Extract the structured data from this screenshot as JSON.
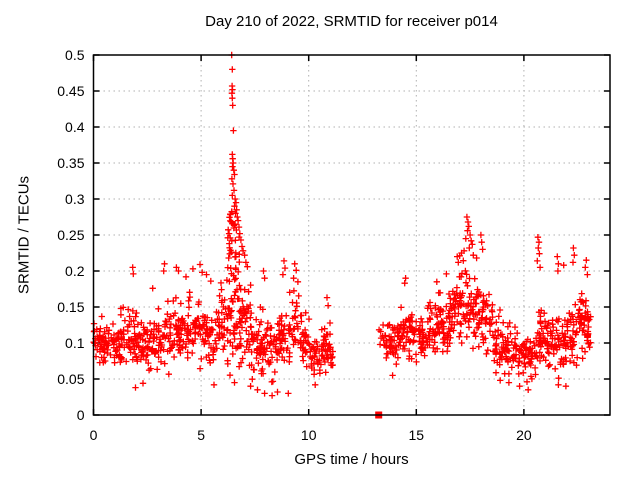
{
  "figure": {
    "title": "Day 210 of 2022, SRMTID for receiver p014"
  },
  "chart_data": {
    "type": "scatter",
    "title": "Day 210 of 2022, SRMTID for receiver p014",
    "xlabel": "GPS time / hours",
    "ylabel": "SRMTID / TECUs",
    "xlim": [
      0,
      24
    ],
    "ylim": [
      0,
      0.5
    ],
    "xticks": {
      "values": [
        0,
        5,
        10,
        15,
        20
      ],
      "labels": [
        "0",
        "5",
        "10",
        "15",
        "20"
      ]
    },
    "yticks": {
      "values": [
        0,
        0.05,
        0.1,
        0.15,
        0.2,
        0.25,
        0.3,
        0.35,
        0.4,
        0.45,
        0.5
      ],
      "labels": [
        "0",
        "0.05",
        "0.1",
        "0.15",
        "0.2",
        "0.25",
        "0.3",
        "0.35",
        "0.4",
        "0.45",
        "0.5"
      ]
    },
    "grid": true,
    "legend_position": "none",
    "marker": "plus",
    "marker_color": "#ff0000",
    "grid_color": "#b0b0b0",
    "border_color": "#000000",
    "data_gap_hours": [
      11.15,
      13.25
    ],
    "special_points": [
      {
        "x": 13.25,
        "y": 0,
        "marker": "filled-square",
        "color": "#ff0000"
      }
    ],
    "seed": 210,
    "point_clusters": [
      [
        0.0,
        0.4,
        26,
        0.105,
        0.032
      ],
      [
        0.4,
        0.8,
        26,
        0.095,
        0.028
      ],
      [
        0.8,
        1.2,
        26,
        0.1,
        0.03
      ],
      [
        1.2,
        1.6,
        28,
        0.105,
        0.035
      ],
      [
        1.6,
        2.0,
        30,
        0.115,
        0.042
      ],
      [
        2.0,
        2.4,
        26,
        0.1,
        0.032
      ],
      [
        2.4,
        2.8,
        26,
        0.095,
        0.032
      ],
      [
        2.8,
        3.2,
        26,
        0.105,
        0.038
      ],
      [
        3.2,
        3.6,
        26,
        0.11,
        0.04
      ],
      [
        3.6,
        4.0,
        28,
        0.115,
        0.04
      ],
      [
        4.0,
        4.4,
        28,
        0.115,
        0.038
      ],
      [
        4.4,
        4.9,
        32,
        0.125,
        0.042
      ],
      [
        4.9,
        5.3,
        28,
        0.115,
        0.038
      ],
      [
        5.3,
        5.8,
        28,
        0.105,
        0.034
      ],
      [
        5.8,
        6.2,
        28,
        0.13,
        0.045
      ],
      [
        6.2,
        6.5,
        22,
        0.12,
        0.05
      ],
      [
        6.2,
        6.55,
        26,
        0.24,
        0.07
      ],
      [
        6.5,
        6.9,
        24,
        0.11,
        0.045
      ],
      [
        6.55,
        6.85,
        20,
        0.2,
        0.05
      ],
      [
        6.9,
        7.3,
        30,
        0.13,
        0.05
      ],
      [
        7.3,
        7.7,
        28,
        0.1,
        0.042
      ],
      [
        7.7,
        8.1,
        30,
        0.105,
        0.048
      ],
      [
        8.1,
        8.6,
        30,
        0.095,
        0.04
      ],
      [
        8.6,
        9.0,
        28,
        0.105,
        0.04
      ],
      [
        9.0,
        9.7,
        40,
        0.12,
        0.048
      ],
      [
        9.7,
        10.05,
        22,
        0.1,
        0.038
      ],
      [
        10.05,
        10.6,
        30,
        0.082,
        0.026
      ],
      [
        10.6,
        11.0,
        30,
        0.095,
        0.032
      ],
      [
        11.0,
        11.15,
        10,
        0.08,
        0.02
      ],
      [
        13.25,
        13.7,
        18,
        0.105,
        0.025
      ],
      [
        13.7,
        14.1,
        28,
        0.1,
        0.03
      ],
      [
        14.1,
        14.6,
        32,
        0.112,
        0.034
      ],
      [
        14.6,
        15.0,
        30,
        0.115,
        0.035
      ],
      [
        15.0,
        15.5,
        32,
        0.108,
        0.032
      ],
      [
        15.5,
        16.0,
        34,
        0.118,
        0.036
      ],
      [
        16.0,
        16.5,
        36,
        0.128,
        0.04
      ],
      [
        16.5,
        17.0,
        38,
        0.14,
        0.044
      ],
      [
        17.0,
        17.6,
        44,
        0.155,
        0.052
      ],
      [
        17.6,
        18.1,
        38,
        0.148,
        0.05
      ],
      [
        18.1,
        18.6,
        32,
        0.125,
        0.042
      ],
      [
        18.6,
        19.1,
        32,
        0.1,
        0.036
      ],
      [
        19.1,
        19.6,
        32,
        0.088,
        0.03
      ],
      [
        19.6,
        20.1,
        32,
        0.085,
        0.03
      ],
      [
        20.1,
        20.6,
        32,
        0.082,
        0.03
      ],
      [
        20.6,
        21.0,
        32,
        0.108,
        0.045
      ],
      [
        21.0,
        21.5,
        32,
        0.105,
        0.035
      ],
      [
        21.5,
        22.0,
        32,
        0.1,
        0.04
      ],
      [
        22.0,
        22.5,
        34,
        0.115,
        0.045
      ],
      [
        22.5,
        23.0,
        38,
        0.128,
        0.04
      ],
      [
        22.95,
        23.1,
        12,
        0.12,
        0.03
      ]
    ],
    "peak_points": [
      [
        6.42,
        0.5
      ],
      [
        6.45,
        0.48
      ],
      [
        6.44,
        0.457
      ],
      [
        6.46,
        0.452
      ],
      [
        6.43,
        0.447
      ],
      [
        6.45,
        0.44
      ],
      [
        6.47,
        0.43
      ],
      [
        6.5,
        0.395
      ],
      [
        6.45,
        0.362
      ],
      [
        6.47,
        0.356
      ],
      [
        6.49,
        0.35
      ],
      [
        6.46,
        0.345
      ],
      [
        6.52,
        0.34
      ],
      [
        6.55,
        0.334
      ],
      [
        6.43,
        0.328
      ],
      [
        6.48,
        0.321
      ],
      [
        6.53,
        0.312
      ],
      [
        6.45,
        0.305
      ],
      [
        6.58,
        0.3
      ],
      [
        6.62,
        0.295
      ],
      [
        6.55,
        0.29
      ],
      [
        6.65,
        0.285
      ],
      [
        6.6,
        0.28
      ],
      [
        6.68,
        0.275
      ],
      [
        6.72,
        0.27
      ],
      [
        6.58,
        0.265
      ],
      [
        6.76,
        0.261
      ],
      [
        6.64,
        0.257
      ],
      [
        6.8,
        0.252
      ],
      [
        6.35,
        0.246
      ],
      [
        6.85,
        0.243
      ],
      [
        6.31,
        0.238
      ],
      [
        6.9,
        0.234
      ],
      [
        6.95,
        0.228
      ],
      [
        7.02,
        0.222
      ],
      [
        6.28,
        0.218
      ],
      [
        7.08,
        0.212
      ],
      [
        7.15,
        0.206
      ],
      [
        1.82,
        0.205
      ],
      [
        1.85,
        0.196
      ],
      [
        3.3,
        0.21
      ],
      [
        3.26,
        0.2
      ],
      [
        3.85,
        0.205
      ],
      [
        3.95,
        0.2
      ],
      [
        4.3,
        0.192
      ],
      [
        4.62,
        0.203
      ],
      [
        4.95,
        0.209
      ],
      [
        5.05,
        0.198
      ],
      [
        5.25,
        0.195
      ],
      [
        5.45,
        0.186
      ],
      [
        2.75,
        0.176
      ],
      [
        8.85,
        0.214
      ],
      [
        8.9,
        0.204
      ],
      [
        8.8,
        0.195
      ],
      [
        7.9,
        0.2
      ],
      [
        7.95,
        0.19
      ],
      [
        9.35,
        0.21
      ],
      [
        9.42,
        0.201
      ],
      [
        9.3,
        0.19
      ],
      [
        9.5,
        0.185
      ],
      [
        10.85,
        0.163
      ],
      [
        10.9,
        0.152
      ],
      [
        7.62,
        0.035
      ],
      [
        7.95,
        0.03
      ],
      [
        8.3,
        0.027
      ],
      [
        8.55,
        0.032
      ],
      [
        9.05,
        0.03
      ],
      [
        1.95,
        0.038
      ],
      [
        6.55,
        0.045
      ],
      [
        7.3,
        0.04
      ],
      [
        10.3,
        0.042
      ],
      [
        5.6,
        0.042
      ],
      [
        2.3,
        0.044
      ],
      [
        17.35,
        0.275
      ],
      [
        17.4,
        0.268
      ],
      [
        17.44,
        0.262
      ],
      [
        17.38,
        0.256
      ],
      [
        17.5,
        0.25
      ],
      [
        17.3,
        0.245
      ],
      [
        17.55,
        0.242
      ],
      [
        17.6,
        0.237
      ],
      [
        17.46,
        0.232
      ],
      [
        17.22,
        0.228
      ],
      [
        17.65,
        0.222
      ],
      [
        17.8,
        0.218
      ],
      [
        18.0,
        0.25
      ],
      [
        18.04,
        0.24
      ],
      [
        18.08,
        0.23
      ],
      [
        16.9,
        0.22
      ],
      [
        16.95,
        0.212
      ],
      [
        17.1,
        0.225
      ],
      [
        20.65,
        0.247
      ],
      [
        20.7,
        0.24
      ],
      [
        20.67,
        0.232
      ],
      [
        20.72,
        0.224
      ],
      [
        20.62,
        0.214
      ],
      [
        20.75,
        0.205
      ],
      [
        21.55,
        0.22
      ],
      [
        21.6,
        0.21
      ],
      [
        21.85,
        0.208
      ],
      [
        21.58,
        0.2
      ],
      [
        22.3,
        0.232
      ],
      [
        22.34,
        0.222
      ],
      [
        22.28,
        0.212
      ],
      [
        22.9,
        0.215
      ],
      [
        22.85,
        0.205
      ],
      [
        22.95,
        0.195
      ],
      [
        14.5,
        0.19
      ],
      [
        14.46,
        0.183
      ],
      [
        15.95,
        0.185
      ],
      [
        16.4,
        0.196
      ],
      [
        19.3,
        0.045
      ],
      [
        20.2,
        0.035
      ],
      [
        21.6,
        0.042
      ],
      [
        19.8,
        0.04
      ],
      [
        18.9,
        0.048
      ],
      [
        21.95,
        0.04
      ],
      [
        13.9,
        0.055
      ]
    ]
  }
}
